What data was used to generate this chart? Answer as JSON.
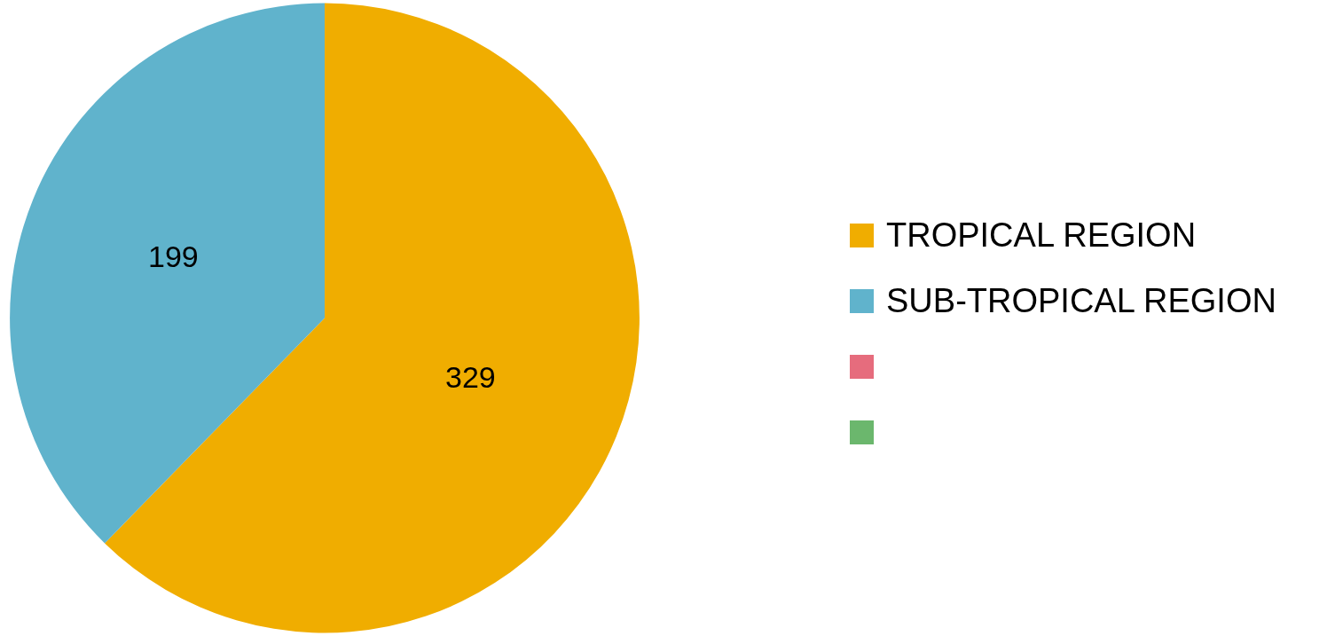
{
  "chart_data": {
    "type": "pie",
    "categories": [
      "TROPICAL REGION",
      "SUB-TROPICAL REGION",
      null,
      null
    ],
    "values": [
      329,
      199,
      null,
      null
    ],
    "colors": [
      "#f0ad00",
      "#60b3cc",
      "#e66c7d",
      "#6bb76d"
    ],
    "data_labels": true,
    "legend": "right"
  }
}
